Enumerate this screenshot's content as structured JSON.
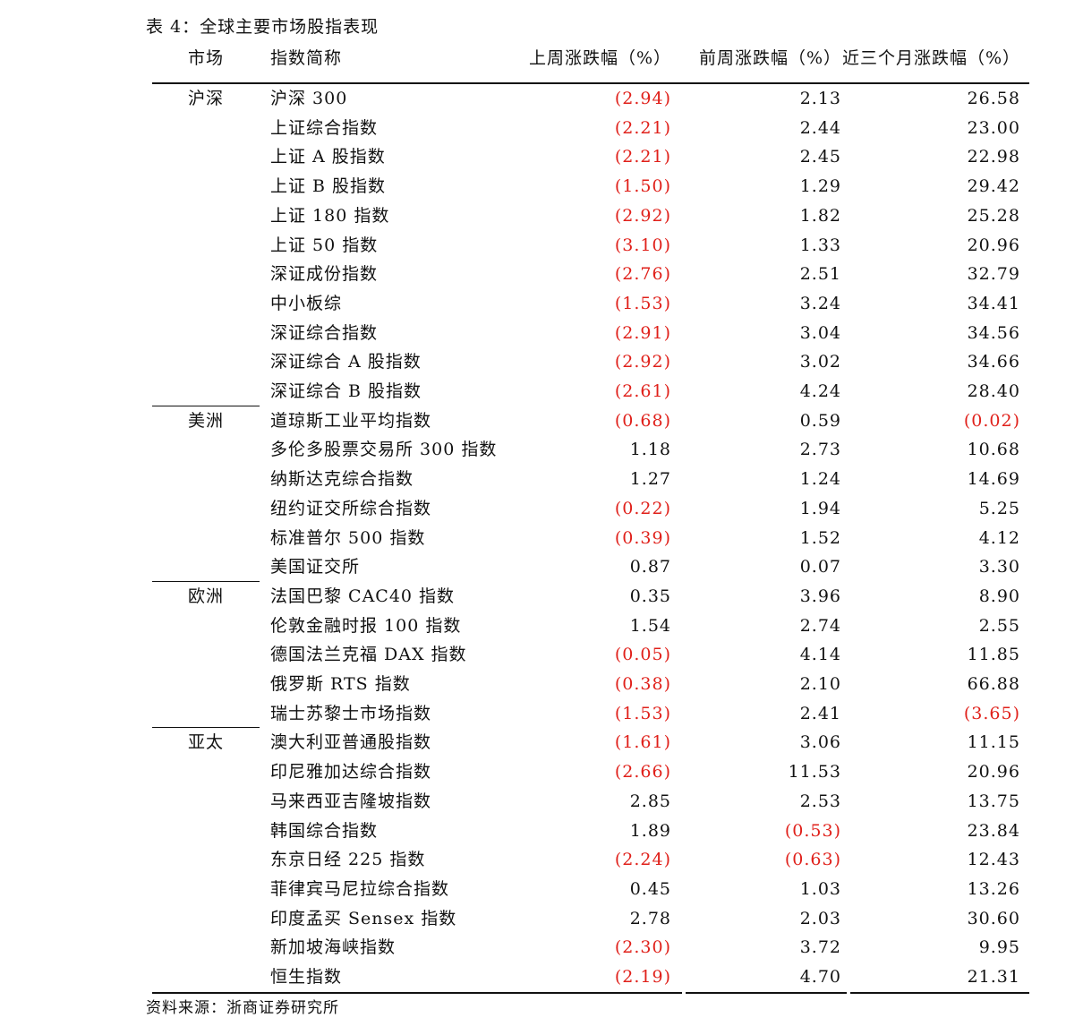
{
  "title": "表 4：全球主要市场股指表现",
  "table": {
    "header": [
      "市场",
      "指数简称",
      "上周涨跌幅（%）",
      "前周涨跌幅（%）",
      "近三个月涨跌幅（%）"
    ],
    "groups": [
      {
        "market": "沪深",
        "rows": [
          [
            "沪深 300",
            "(2.94)",
            "2.13",
            "26.58"
          ],
          [
            "上证综合指数",
            "(2.21)",
            "2.44",
            "23.00"
          ],
          [
            "上证 A 股指数",
            "(2.21)",
            "2.45",
            "22.98"
          ],
          [
            "上证 B 股指数",
            "(1.50)",
            "1.29",
            "29.42"
          ],
          [
            "上证 180 指数",
            "(2.92)",
            "1.82",
            "25.28"
          ],
          [
            "上证 50 指数",
            "(3.10)",
            "1.33",
            "20.96"
          ],
          [
            "深证成份指数",
            "(2.76)",
            "2.51",
            "32.79"
          ],
          [
            "中小板综",
            "(1.53)",
            "3.24",
            "34.41"
          ],
          [
            "深证综合指数",
            "(2.91)",
            "3.04",
            "34.56"
          ],
          [
            "深证综合 A 股指数",
            "(2.92)",
            "3.02",
            "34.66"
          ],
          [
            "深证综合 B 股指数",
            "(2.61)",
            "4.24",
            "28.40"
          ]
        ]
      },
      {
        "market": "美洲",
        "rows": [
          [
            "道琼斯工业平均指数",
            "(0.68)",
            "0.59",
            "(0.02)"
          ],
          [
            "多伦多股票交易所 300 指数",
            "1.18",
            "2.73",
            "10.68"
          ],
          [
            "纳斯达克综合指数",
            "1.27",
            "1.24",
            "14.69"
          ],
          [
            "纽约证交所综合指数",
            "(0.22)",
            "1.94",
            "5.25"
          ],
          [
            "标准普尔 500 指数",
            "(0.39)",
            "1.52",
            "4.12"
          ],
          [
            "美国证交所",
            "0.87",
            "0.07",
            "3.30"
          ]
        ]
      },
      {
        "market": "欧洲",
        "rows": [
          [
            "法国巴黎 CAC40 指数",
            "0.35",
            "3.96",
            "8.90"
          ],
          [
            "伦敦金融时报 100 指数",
            "1.54",
            "2.74",
            "2.55"
          ],
          [
            "德国法兰克福 DAX 指数",
            "(0.05)",
            "4.14",
            "11.85"
          ],
          [
            "俄罗斯 RTS 指数",
            "(0.38)",
            "2.10",
            "66.88"
          ],
          [
            "瑞士苏黎士市场指数",
            "(1.53)",
            "2.41",
            "(3.65)"
          ]
        ]
      },
      {
        "market": "亚太",
        "rows": [
          [
            "澳大利亚普通股指数",
            "(1.61)",
            "3.06",
            "11.15"
          ],
          [
            "印尼雅加达综合指数",
            "(2.66)",
            "11.53",
            "20.96"
          ],
          [
            "马来西亚吉隆坡指数",
            "2.85",
            "2.53",
            "13.75"
          ],
          [
            "韩国综合指数",
            "1.89",
            "(0.53)",
            "23.84"
          ],
          [
            "东京日经 225 指数",
            "(2.24)",
            "(0.63)",
            "12.43"
          ],
          [
            "菲律宾马尼拉综合指数",
            "0.45",
            "1.03",
            "13.26"
          ],
          [
            "印度孟买 Sensex 指数",
            "2.78",
            "2.03",
            "30.60"
          ],
          [
            "新加坡海峡指数",
            "(2.30)",
            "3.72",
            "9.95"
          ],
          [
            "恒生指数",
            "(2.19)",
            "4.70",
            "21.31"
          ]
        ]
      }
    ]
  },
  "source": "资料来源：浙商证券研究所"
}
